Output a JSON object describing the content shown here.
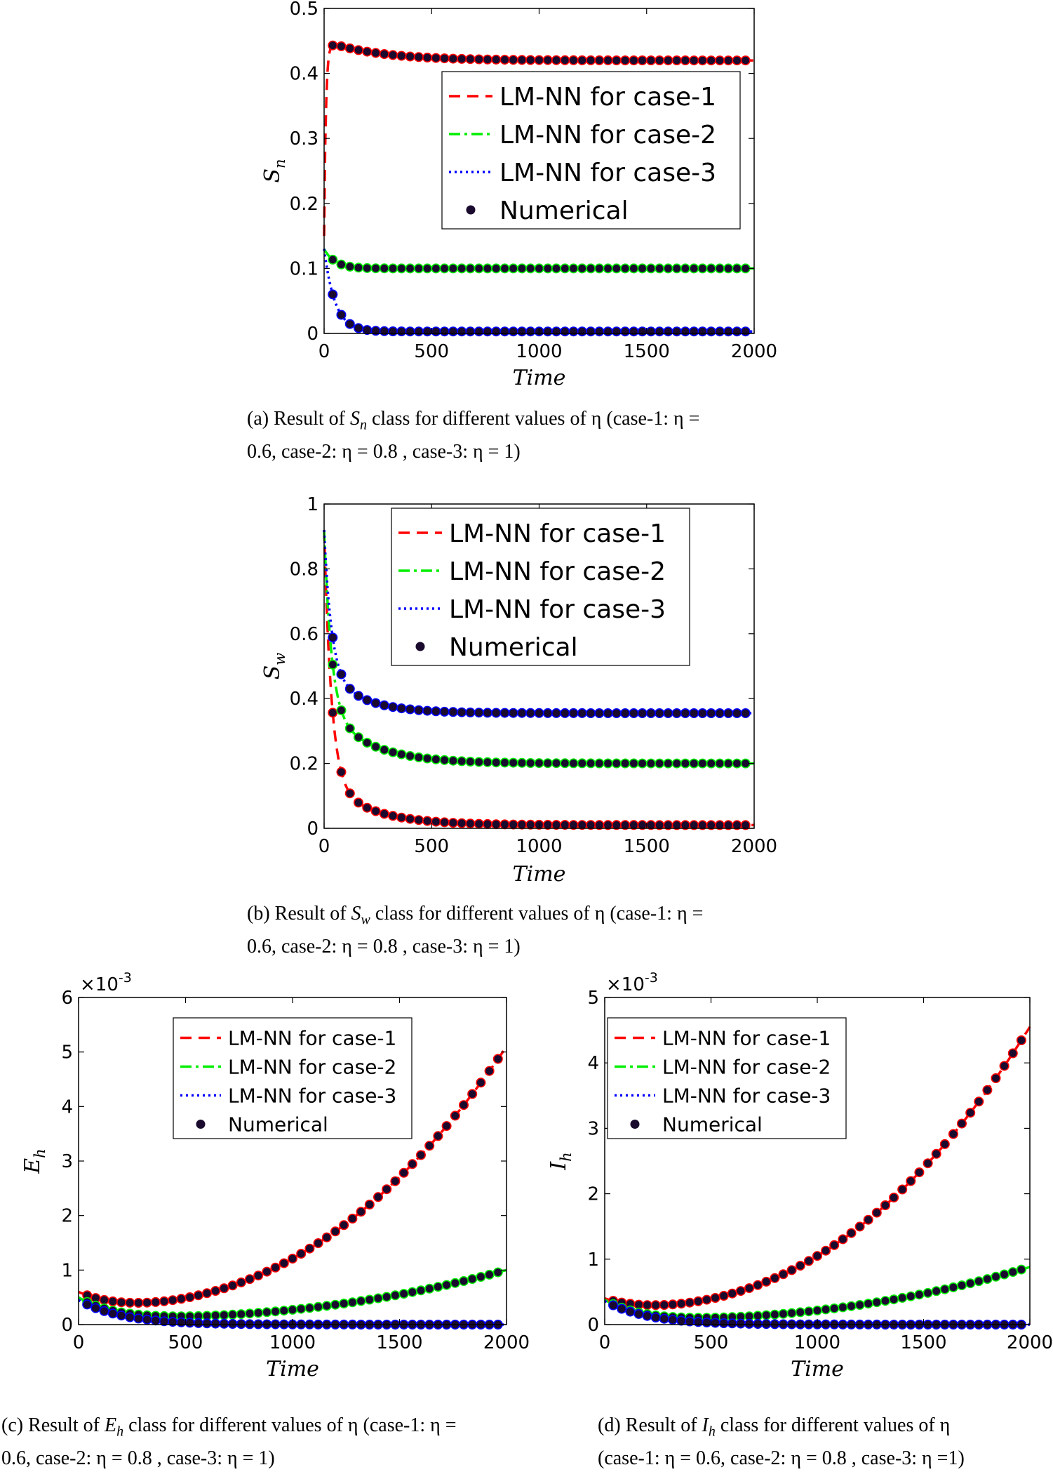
{
  "chart_data": [
    {
      "id": "a",
      "type": "line",
      "title": "",
      "xlabel": "Time",
      "ylabel": "S_n",
      "ylabel_main": "S",
      "ylabel_sub": "n",
      "xlim": [
        0,
        2000
      ],
      "ylim": [
        0,
        0.5
      ],
      "xticks": [
        0,
        500,
        1000,
        1500,
        2000
      ],
      "yticks": [
        0,
        0.1,
        0.2,
        0.3,
        0.4,
        0.5
      ],
      "ytick_labels": [
        "0",
        "0.1",
        "0.2",
        "0.3",
        "0.4",
        "0.5"
      ],
      "exponent_label": "",
      "legend_position": "upper-right",
      "series": [
        {
          "name": "LM-NN for case-1",
          "color": "#ff0000",
          "style": "dash",
          "initial": 0.15,
          "final": 0.42,
          "k": 0.12,
          "amp2": 0.03,
          "k2": 0.004
        },
        {
          "name": "LM-NN for case-2",
          "color": "#00ee00",
          "style": "dashdot",
          "initial": 0.13,
          "final": 0.1,
          "k": 0.02,
          "amp2": 0.0,
          "k2": 0.0
        },
        {
          "name": "LM-NN for case-3",
          "color": "#0000ff",
          "style": "dot",
          "initial": 0.13,
          "final": 0.003,
          "k": 0.02,
          "amp2": 0.0,
          "k2": 0.0
        }
      ],
      "numerical_label": "Numerical",
      "caption": {
        "before": "(a)  Result of ",
        "var_main": "S",
        "var_sub": "n",
        "after": " class for different values of η (case-1: η =",
        "line2": "0.6, case-2: η = 0.8 , case-3: η = 1)"
      }
    },
    {
      "id": "b",
      "type": "line",
      "title": "",
      "xlabel": "Time",
      "ylabel": "S_w",
      "ylabel_main": "S",
      "ylabel_sub": "w",
      "xlim": [
        0,
        2000
      ],
      "ylim": [
        0,
        1
      ],
      "xticks": [
        0,
        500,
        1000,
        1500,
        2000
      ],
      "yticks": [
        0,
        0.2,
        0.4,
        0.6,
        0.8,
        1
      ],
      "ytick_labels": [
        "0",
        "0.2",
        "0.4",
        "0.6",
        "0.8",
        "1"
      ],
      "exponent_label": "",
      "legend_position": "upper-right",
      "series": [
        {
          "name": "LM-NN for case-1",
          "color": "#ff0000",
          "style": "dash",
          "initial": 0.92,
          "final": 0.01,
          "k": 0.03,
          "amp2": 0.14,
          "k2": 0.005
        },
        {
          "name": "LM-NN for case-2",
          "color": "#00ee00",
          "style": "dashdot",
          "initial": 0.92,
          "final": 0.2,
          "k": 0.03,
          "amp2": 0.17,
          "k2": 0.005
        },
        {
          "name": "LM-NN for case-3",
          "color": "#0000ff",
          "style": "dot",
          "initial": 0.92,
          "final": 0.355,
          "k": 0.03,
          "amp2": 0.13,
          "k2": 0.006
        }
      ],
      "numerical_label": "Numerical",
      "caption": {
        "before": "(b)  Result of ",
        "var_main": "S",
        "var_sub": "w",
        "after": " class for different values of η (case-1: η =",
        "line2": "0.6, case-2: η = 0.8 , case-3: η = 1)"
      }
    },
    {
      "id": "c",
      "type": "line",
      "title": "",
      "xlabel": "Time",
      "ylabel": "E_h",
      "ylabel_main": "E",
      "ylabel_sub": "h",
      "xlim": [
        0,
        2000
      ],
      "ylim": [
        0,
        6
      ],
      "xticks": [
        0,
        500,
        1000,
        1500,
        2000
      ],
      "yticks": [
        0,
        1,
        2,
        3,
        4,
        5,
        6
      ],
      "ytick_labels": [
        "0",
        "1",
        "2",
        "3",
        "4",
        "5",
        "6"
      ],
      "exponent_label": "×10",
      "exponent_power": "-3",
      "legend_position": "upper-center",
      "series": [
        {
          "name": "LM-NN for case-1",
          "color": "#ff0000",
          "style": "dash",
          "poly": [
            0.6,
            0.3,
            0.006,
            5.1
          ]
        },
        {
          "name": "LM-NN for case-2",
          "color": "#00ee00",
          "style": "dashdot",
          "poly": [
            0.5,
            0.1,
            0.006,
            1.0
          ]
        },
        {
          "name": "LM-NN for case-3",
          "color": "#0000ff",
          "style": "dot",
          "poly": [
            0.45,
            0.0,
            0.005,
            0.0
          ]
        }
      ],
      "numerical_label": "Numerical",
      "caption": {
        "before": "(c)  Result of ",
        "var_main": "E",
        "var_sub": "h",
        "after": " class for different values of η (case-1: η =",
        "line2": "0.6, case-2: η = 0.8 , case-3: η = 1)"
      }
    },
    {
      "id": "d",
      "type": "line",
      "title": "",
      "xlabel": "Time",
      "ylabel": "I_h",
      "ylabel_main": "I",
      "ylabel_sub": "h",
      "xlim": [
        0,
        2000
      ],
      "ylim": [
        0,
        5
      ],
      "xticks": [
        0,
        500,
        1000,
        1500,
        2000
      ],
      "yticks": [
        0,
        1,
        2,
        3,
        4,
        5
      ],
      "ytick_labels": [
        "0",
        "1",
        "2",
        "3",
        "4",
        "5"
      ],
      "exponent_label": "×10",
      "exponent_power": "-3",
      "legend_position": "upper-center",
      "series": [
        {
          "name": "LM-NN for case-1",
          "color": "#ff0000",
          "style": "dash",
          "poly": [
            0.4,
            0.23,
            0.006,
            4.55
          ]
        },
        {
          "name": "LM-NN for case-2",
          "color": "#00ee00",
          "style": "dashdot",
          "poly": [
            0.38,
            0.06,
            0.006,
            0.88
          ]
        },
        {
          "name": "LM-NN for case-3",
          "color": "#0000ff",
          "style": "dot",
          "poly": [
            0.36,
            0.0,
            0.005,
            0.0
          ]
        }
      ],
      "numerical_label": "Numerical",
      "caption": {
        "before": "(d)  Result of ",
        "var_main": "I",
        "var_sub": "h",
        "after": " class for different values of η",
        "line2": "(case-1: η = 0.6, case-2: η = 0.8 , case-3: η =1)"
      }
    }
  ]
}
